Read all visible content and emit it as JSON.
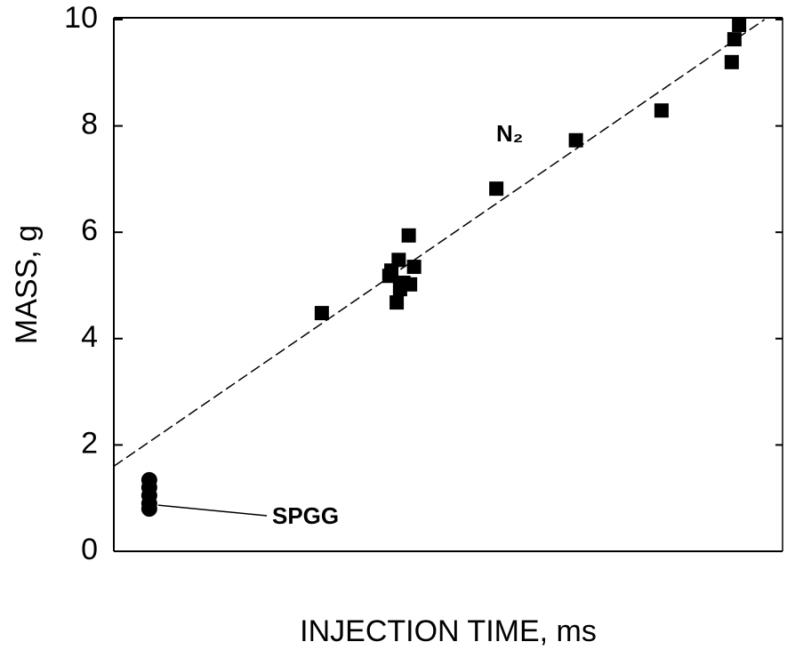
{
  "chart_data": {
    "type": "scatter",
    "x_label": "INJECTION TIME, ms",
    "y_label": "MASS, g",
    "xlim": [
      0,
      100
    ],
    "ylim": [
      0,
      10
    ],
    "yticks": [
      0,
      2,
      4,
      6,
      8,
      10
    ],
    "series": [
      {
        "name": "N₂",
        "color": "#000000",
        "marker": "square",
        "x": [
          31.1,
          41.2,
          41.5,
          42.6,
          42.3,
          42.8,
          43.3,
          44.3,
          44.1,
          44.9,
          57.2,
          69.1,
          81.9,
          92.4,
          92.8,
          93.5
        ],
        "values": [
          4.48,
          5.18,
          5.28,
          5.48,
          4.68,
          4.93,
          5.05,
          5.02,
          5.94,
          5.35,
          6.82,
          7.73,
          8.29,
          9.2,
          9.63,
          9.9
        ]
      },
      {
        "name": "SPGG",
        "color": "#000000",
        "marker": "circle",
        "x": [
          5.3,
          5.3,
          5.3,
          5.3,
          5.3
        ],
        "values": [
          1.34,
          1.2,
          1.05,
          0.9,
          0.8
        ]
      }
    ],
    "fit_line": {
      "x": [
        0,
        97.3
      ],
      "values": [
        1.6,
        10
      ]
    }
  }
}
